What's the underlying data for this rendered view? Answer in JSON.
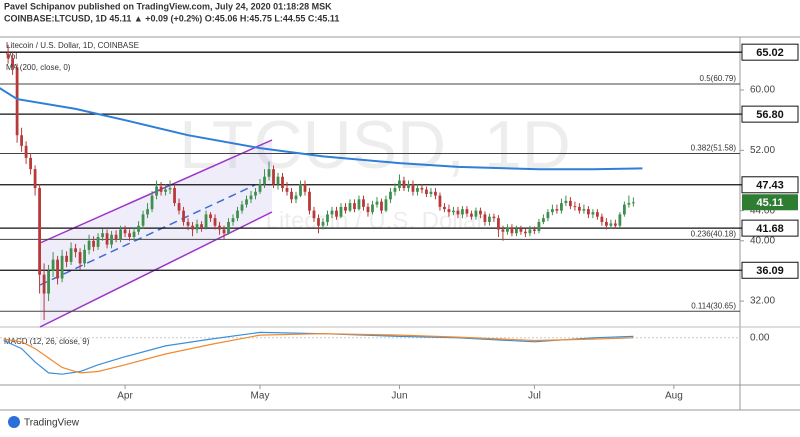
{
  "header": {
    "author_line": "Pavel Schipanov published on TradingView.com, July 24, 2020 01:18:28 MSK",
    "symbol_line": "COINBASE:LTCUSD, 1D 45.11 ▲ +0.09 (+0.2%) O:45.06 H:45.75 L:44.55 C:45.11"
  },
  "footer": {
    "brand": "TradingView"
  },
  "chart_data": {
    "type": "candlestick",
    "title": "Litecoin / U.S. Dollar, 1D, COINBASE",
    "vol_label": "Vol",
    "watermark": "LTCUSD, 1D",
    "watermark_sub": "Litecoin / U.S. Dollar",
    "up_color": "#3f8f4e",
    "down_color": "#b8393a",
    "xlim": [
      -1.8,
      162.7
    ],
    "xticks": [
      {
        "value": 26,
        "label": "Apr"
      },
      {
        "value": 56,
        "label": "May"
      },
      {
        "value": 87,
        "label": "Jun"
      },
      {
        "value": 117,
        "label": "Jul"
      },
      {
        "value": 148,
        "label": "Aug"
      }
    ],
    "ylim": [
      28.83,
      66.9
    ],
    "yticks": [
      {
        "value": 32,
        "label": "32.00"
      },
      {
        "value": 40,
        "label": "40.00"
      },
      {
        "value": 44,
        "label": "44.00"
      },
      {
        "value": 52,
        "label": "52.00"
      },
      {
        "value": 60,
        "label": "60.00"
      }
    ],
    "levels": [
      65.02,
      {
        "value": 56.8,
        "label": "56.80"
      },
      47.43,
      41.68,
      36.09
    ],
    "fib_levels": [
      {
        "value": 60.79,
        "label": "0.5(60.79)"
      },
      {
        "value": 51.58,
        "label": "0.382(51.58)"
      },
      {
        "value": 40.18,
        "label": "0.236(40.18)"
      },
      {
        "value": 30.65,
        "label": "0.114(30.65)"
      }
    ],
    "x": [
      0,
      1,
      2,
      3,
      4,
      5,
      6,
      7,
      8,
      9,
      10,
      11,
      12,
      13,
      14,
      15,
      16,
      17,
      18,
      19,
      20,
      21,
      22,
      23,
      24,
      25,
      26,
      27,
      28,
      29,
      30,
      31,
      32,
      33,
      34,
      35,
      36,
      37,
      38,
      39,
      40,
      41,
      42,
      43,
      44,
      45,
      46,
      47,
      48,
      49,
      50,
      51,
      52,
      53,
      54,
      55,
      56,
      57,
      58,
      59,
      60,
      61,
      62,
      63,
      64,
      65,
      66,
      67,
      68,
      69,
      70,
      71,
      72,
      73,
      74,
      75,
      76,
      77,
      78,
      79,
      80,
      81,
      82,
      83,
      84,
      85,
      86,
      87,
      88,
      89,
      90,
      91,
      92,
      93,
      94,
      95,
      96,
      97,
      98,
      99,
      100,
      101,
      102,
      103,
      104,
      105,
      106,
      107,
      108,
      109,
      110,
      111,
      112,
      113,
      114,
      115,
      116,
      117,
      118,
      119,
      120,
      121,
      122,
      123,
      124,
      125,
      126,
      127,
      128,
      129,
      130,
      131,
      132,
      133,
      134,
      135,
      136,
      137,
      138,
      139
    ],
    "open": [
      64.8,
      64.2,
      63.0,
      54.0,
      52.6,
      51.0,
      49.5,
      47.0,
      35.5,
      33.0,
      36.0,
      37.5,
      35.0,
      38.0,
      37.2,
      39.0,
      38.5,
      37.0,
      38.8,
      40.0,
      39.2,
      40.5,
      41.0,
      39.5,
      40.8,
      40.2,
      41.5,
      41.0,
      40.5,
      41.2,
      42.0,
      43.5,
      44.2,
      46.0,
      47.2,
      46.5,
      46.8,
      47.0,
      45.0,
      44.0,
      42.5,
      42.0,
      41.5,
      42.2,
      41.8,
      43.5,
      43.0,
      42.0,
      41.5,
      41.0,
      42.5,
      43.0,
      44.0,
      44.8,
      45.5,
      46.0,
      46.5,
      47.5,
      48.5,
      49.5,
      47.5,
      48.5,
      47.0,
      46.5,
      45.5,
      46.0,
      47.5,
      46.5,
      44.0,
      43.0,
      42.0,
      42.5,
      43.5,
      44.0,
      43.2,
      44.5,
      44.0,
      45.0,
      44.2,
      45.5,
      44.5,
      43.8,
      44.8,
      45.2,
      44.0,
      45.5,
      46.5,
      47.0,
      48.0,
      47.0,
      47.5,
      46.5,
      47.0,
      46.8,
      46.2,
      46.5,
      46.0,
      44.5,
      44.2,
      43.8,
      44.0,
      43.5,
      44.2,
      43.6,
      43.2,
      44.0,
      43.5,
      42.5,
      43.2,
      43.0,
      41.5,
      41.2,
      41.8,
      41.0,
      41.6,
      41.2,
      41.0,
      41.5,
      41.3,
      42.5,
      43.0,
      43.8,
      44.2,
      44.0,
      45.0,
      45.3,
      44.6,
      44.5,
      44.0,
      44.2,
      43.5,
      43.8,
      43.2,
      42.5,
      42.0,
      42.3,
      42.0,
      43.5,
      44.8,
      45.06
    ],
    "high": [
      66.0,
      65.0,
      63.5,
      55.0,
      53.2,
      51.6,
      50.0,
      47.5,
      37.0,
      36.8,
      38.5,
      38.0,
      38.8,
      38.6,
      39.8,
      39.6,
      39.0,
      39.5,
      40.8,
      40.6,
      41.0,
      41.6,
      41.5,
      41.3,
      41.4,
      42.0,
      42.0,
      41.5,
      41.8,
      42.6,
      44.0,
      45.0,
      46.6,
      48.0,
      47.8,
      47.5,
      48.0,
      47.5,
      45.6,
      44.5,
      43.0,
      42.5,
      42.8,
      42.6,
      44.0,
      43.8,
      43.5,
      42.5,
      42.0,
      43.0,
      43.5,
      44.5,
      45.3,
      46.0,
      46.6,
      47.0,
      48.2,
      49.5,
      50.5,
      50.0,
      49.0,
      49.0,
      47.8,
      47.0,
      46.5,
      48.0,
      48.0,
      47.0,
      44.5,
      43.5,
      43.0,
      44.0,
      44.5,
      44.5,
      45.0,
      45.0,
      45.5,
      45.5,
      46.0,
      46.0,
      45.0,
      45.3,
      45.8,
      45.6,
      46.0,
      47.0,
      47.6,
      48.8,
      48.5,
      48.0,
      48.0,
      47.5,
      47.5,
      47.2,
      47.0,
      47.0,
      46.4,
      45.0,
      44.8,
      44.5,
      44.5,
      44.6,
      44.6,
      44.0,
      44.4,
      44.4,
      43.9,
      43.6,
      43.6,
      43.4,
      42.0,
      42.2,
      42.2,
      42.0,
      42.0,
      41.6,
      42.0,
      41.9,
      42.9,
      43.5,
      44.2,
      44.8,
      44.8,
      45.6,
      46.0,
      45.8,
      45.2,
      45.0,
      44.8,
      44.6,
      44.2,
      44.2,
      43.6,
      43.0,
      42.8,
      42.8,
      43.8,
      45.2,
      46.0,
      45.75
    ],
    "low": [
      63.5,
      62.0,
      53.0,
      51.8,
      50.2,
      48.8,
      46.0,
      33.0,
      29.5,
      32.0,
      35.2,
      34.2,
      34.5,
      36.5,
      36.8,
      37.8,
      36.2,
      36.5,
      38.2,
      38.6,
      38.8,
      40.0,
      39.0,
      39.0,
      39.8,
      39.8,
      40.5,
      40.0,
      40.0,
      40.8,
      41.6,
      43.0,
      43.8,
      45.5,
      46.0,
      46.0,
      46.2,
      44.6,
      43.5,
      42.0,
      41.4,
      40.6,
      41.0,
      41.2,
      41.5,
      42.5,
      41.5,
      40.8,
      40.2,
      40.8,
      42.0,
      42.6,
      43.6,
      44.4,
      45.0,
      45.5,
      46.2,
      47.0,
      48.0,
      47.0,
      46.8,
      46.5,
      46.0,
      45.0,
      45.0,
      45.8,
      46.0,
      43.5,
      42.5,
      41.0,
      41.5,
      42.0,
      43.0,
      42.8,
      43.0,
      43.6,
      43.8,
      43.8,
      44.0,
      44.0,
      43.2,
      43.5,
      44.4,
      43.6,
      43.8,
      45.0,
      46.0,
      46.6,
      46.6,
      46.5,
      46.0,
      46.0,
      46.3,
      45.8,
      45.8,
      45.5,
      44.0,
      43.8,
      43.2,
      43.4,
      43.0,
      43.0,
      43.2,
      42.8,
      42.8,
      43.0,
      42.0,
      42.0,
      42.5,
      40.5,
      40.0,
      40.8,
      40.6,
      40.6,
      40.8,
      40.5,
      40.6,
      40.9,
      41.0,
      42.2,
      42.6,
      43.4,
      43.6,
      43.6,
      44.6,
      44.2,
      44.0,
      43.6,
      43.6,
      43.0,
      43.0,
      42.8,
      42.0,
      41.5,
      41.6,
      41.6,
      41.8,
      43.2,
      44.4,
      44.55
    ],
    "close": [
      64.2,
      63.0,
      54.0,
      52.6,
      51.0,
      49.5,
      47.0,
      35.5,
      33.0,
      36.0,
      37.5,
      35.0,
      38.0,
      37.2,
      39.0,
      38.5,
      37.0,
      38.8,
      40.0,
      39.2,
      40.5,
      41.0,
      39.5,
      40.8,
      40.2,
      41.5,
      41.0,
      40.5,
      41.2,
      42.0,
      43.5,
      44.2,
      46.0,
      47.2,
      46.5,
      46.8,
      47.0,
      45.0,
      44.0,
      42.5,
      42.0,
      41.5,
      42.2,
      41.8,
      43.5,
      43.0,
      42.0,
      41.5,
      41.0,
      42.5,
      43.0,
      44.0,
      44.8,
      45.5,
      46.0,
      46.5,
      47.5,
      48.5,
      49.5,
      47.5,
      48.5,
      47.0,
      46.5,
      45.5,
      46.0,
      47.5,
      46.5,
      44.0,
      43.0,
      42.0,
      42.5,
      43.5,
      44.0,
      43.2,
      44.5,
      44.0,
      45.0,
      44.2,
      45.5,
      44.5,
      43.8,
      44.8,
      45.2,
      44.0,
      45.5,
      46.5,
      47.0,
      48.0,
      47.0,
      47.5,
      46.5,
      47.0,
      46.8,
      46.2,
      46.5,
      46.0,
      44.5,
      44.2,
      43.8,
      44.0,
      43.5,
      44.2,
      43.6,
      43.2,
      44.0,
      43.5,
      42.5,
      43.2,
      43.0,
      41.5,
      41.2,
      41.8,
      41.0,
      41.6,
      41.2,
      41.0,
      41.5,
      41.3,
      42.5,
      43.0,
      43.8,
      44.2,
      44.0,
      45.0,
      45.3,
      44.6,
      44.5,
      44.0,
      44.2,
      43.5,
      43.8,
      43.2,
      42.5,
      42.0,
      42.3,
      42.0,
      43.5,
      44.8,
      45.02,
      45.11
    ],
    "ma": {
      "name": "MA (200, close, 0)",
      "color": "#2f7fd8",
      "x": [
        -2,
        2,
        15,
        26,
        40,
        56,
        70,
        87,
        100,
        118,
        130,
        141
      ],
      "values": [
        60.3,
        58.8,
        57.5,
        56.0,
        54.0,
        52.3,
        51.2,
        50.3,
        49.8,
        49.5,
        49.5,
        49.6
      ]
    },
    "macd": {
      "name": "MACD (12, 26, close, 9)",
      "ylim": [
        -3.5,
        0.8
      ],
      "yticks": [
        {
          "value": 0,
          "label": "0.00"
        }
      ],
      "series": [
        {
          "color": "#3b8fd9",
          "x": [
            -1,
            3,
            6,
            9,
            12,
            16,
            20,
            26,
            35,
            45,
            56,
            70,
            87,
            100,
            117,
            130,
            139
          ],
          "values": [
            -0.2,
            -0.8,
            -1.8,
            -2.6,
            -2.7,
            -2.5,
            -2.0,
            -1.4,
            -0.6,
            -0.1,
            0.4,
            0.3,
            0.1,
            0.0,
            -0.3,
            0.0,
            0.1
          ]
        },
        {
          "color": "#f08a30",
          "x": [
            -1,
            3,
            6,
            9,
            12,
            16,
            20,
            26,
            35,
            45,
            56,
            70,
            87,
            100,
            117,
            130,
            139
          ],
          "values": [
            -0.1,
            -0.3,
            -0.8,
            -1.5,
            -2.2,
            -2.6,
            -2.5,
            -2.0,
            -1.2,
            -0.5,
            0.2,
            0.3,
            0.2,
            0.05,
            -0.2,
            -0.1,
            0.0
          ]
        }
      ]
    }
  }
}
